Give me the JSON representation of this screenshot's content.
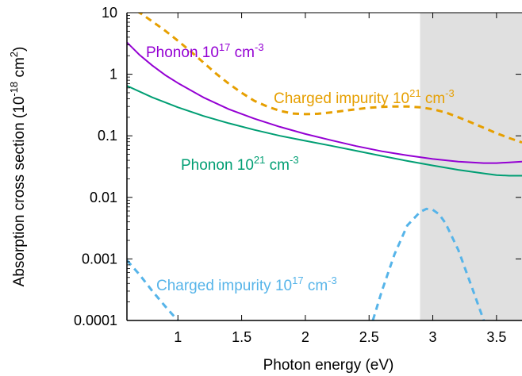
{
  "chart_data": {
    "type": "line",
    "xlabel": "Photon energy (eV)",
    "ylabel": {
      "main": "Absorption cross section (10",
      "exp1": "-18",
      "mid": " cm",
      "exp2": "2",
      "end": ")"
    },
    "xlim": [
      0.6,
      3.7
    ],
    "ylim": [
      0.0001,
      10
    ],
    "yscale": "log",
    "x_ticks": [
      1,
      1.5,
      2,
      2.5,
      3,
      3.5
    ],
    "x_tick_labels": [
      "1",
      "1.5",
      "2",
      "2.5",
      "3",
      "3.5"
    ],
    "y_ticks": [
      0.0001,
      0.001,
      0.01,
      0.1,
      1,
      10
    ],
    "y_tick_labels": [
      "0.0001",
      "0.001",
      "0.01",
      "0.1",
      "1",
      "10"
    ],
    "grid": false,
    "shaded_region": {
      "x": [
        2.9,
        3.7
      ],
      "color": "#e0e0e0"
    },
    "series": [
      {
        "key": "phonon-1e17",
        "color": "#9400d3",
        "dash": "solid",
        "x": [
          0.6,
          0.7,
          0.8,
          0.9,
          1.0,
          1.2,
          1.4,
          1.6,
          1.8,
          2.0,
          2.2,
          2.4,
          2.6,
          2.8,
          3.0,
          3.2,
          3.4,
          3.5,
          3.6,
          3.7
        ],
        "y": [
          3.3,
          2.05,
          1.38,
          0.97,
          0.72,
          0.42,
          0.27,
          0.19,
          0.14,
          0.107,
          0.085,
          0.068,
          0.056,
          0.048,
          0.042,
          0.038,
          0.036,
          0.036,
          0.037,
          0.038
        ]
      },
      {
        "key": "phonon-1e21",
        "color": "#009e73",
        "dash": "solid",
        "x": [
          0.6,
          0.8,
          1.0,
          1.2,
          1.4,
          1.6,
          1.8,
          2.0,
          2.2,
          2.4,
          2.6,
          2.8,
          3.0,
          3.2,
          3.4,
          3.5,
          3.6,
          3.7
        ],
        "y": [
          0.65,
          0.42,
          0.29,
          0.21,
          0.16,
          0.125,
          0.1,
          0.083,
          0.069,
          0.057,
          0.047,
          0.039,
          0.033,
          0.028,
          0.0245,
          0.023,
          0.0225,
          0.0225
        ]
      },
      {
        "key": "charged-1e21",
        "color": "#e69f00",
        "dash": "dashed",
        "x": [
          0.6,
          0.7,
          0.8,
          0.9,
          1.0,
          1.1,
          1.2,
          1.3,
          1.4,
          1.5,
          1.6,
          1.7,
          1.8,
          1.9,
          2.0,
          2.1,
          2.2,
          2.3,
          2.4,
          2.5,
          2.6,
          2.7,
          2.8,
          2.9,
          3.0,
          3.1,
          3.2,
          3.3,
          3.4,
          3.5,
          3.6,
          3.7
        ],
        "y": [
          13,
          10,
          7.2,
          5.1,
          3.5,
          2.35,
          1.55,
          1.02,
          0.7,
          0.5,
          0.37,
          0.3,
          0.255,
          0.23,
          0.225,
          0.228,
          0.24,
          0.255,
          0.27,
          0.285,
          0.295,
          0.3,
          0.3,
          0.29,
          0.27,
          0.24,
          0.2,
          0.165,
          0.135,
          0.11,
          0.092,
          0.078
        ]
      },
      {
        "key": "charged-1e17-left",
        "color": "#56b4e9",
        "dash": "dashed",
        "x": [
          0.6,
          0.7,
          0.8,
          0.9,
          0.95,
          1.0
        ],
        "y": [
          0.00095,
          0.00055,
          0.0003,
          0.00017,
          0.00013,
          0.0001
        ]
      },
      {
        "key": "charged-1e17-right",
        "color": "#56b4e9",
        "dash": "dashed",
        "x": [
          2.53,
          2.6,
          2.7,
          2.8,
          2.9,
          2.95,
          3.0,
          3.05,
          3.1,
          3.2,
          3.3,
          3.4
        ],
        "y": [
          0.0001,
          0.0003,
          0.0012,
          0.0035,
          0.0058,
          0.0065,
          0.0063,
          0.0053,
          0.0038,
          0.0014,
          0.00038,
          0.0001
        ]
      }
    ],
    "annotations": [
      {
        "key": "phonon-1e17",
        "text": "Phonon 10",
        "exp": "17",
        "unit": " cm",
        "uexp": "-3",
        "color": "#9400d3"
      },
      {
        "key": "charged-1e21",
        "text": "Charged impurity 10",
        "exp": "21",
        "unit": " cm",
        "uexp": "-3",
        "color": "#e69f00"
      },
      {
        "key": "phonon-1e21",
        "text": "Phonon 10",
        "exp": "21",
        "unit": " cm",
        "uexp": "-3",
        "color": "#009e73"
      },
      {
        "key": "charged-1e17",
        "text": "Charged impurity 10",
        "exp": "17",
        "unit": " cm",
        "uexp": "-3",
        "color": "#56b4e9"
      }
    ]
  }
}
